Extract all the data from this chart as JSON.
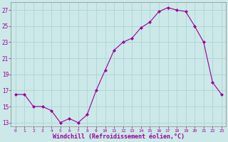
{
  "x": [
    0,
    1,
    2,
    3,
    4,
    5,
    6,
    7,
    8,
    9,
    10,
    11,
    12,
    13,
    14,
    15,
    16,
    17,
    18,
    19,
    20,
    21,
    22,
    23
  ],
  "y": [
    16.5,
    16.5,
    15.0,
    15.0,
    14.5,
    13.0,
    13.5,
    13.0,
    14.0,
    17.0,
    19.5,
    22.0,
    23.0,
    23.5,
    24.8,
    25.5,
    26.8,
    27.3,
    27.0,
    26.8,
    25.0,
    23.0,
    18.0,
    16.5
  ],
  "line_color": "#990099",
  "marker": "D",
  "marker_size": 2.0,
  "xlabel": "Windchill (Refroidissement éolien,°C)",
  "xlabel_fontsize": 6.0,
  "bg_color": "#cce8e8",
  "grid_color": "#b0d8d8",
  "tick_color": "#990099",
  "label_color": "#990099",
  "ylim": [
    12.5,
    28.0
  ],
  "xlim": [
    -0.5,
    23.5
  ],
  "yticks": [
    13,
    15,
    17,
    19,
    21,
    23,
    25,
    27
  ],
  "xticks": [
    0,
    1,
    2,
    3,
    4,
    5,
    6,
    7,
    8,
    9,
    10,
    11,
    12,
    13,
    14,
    15,
    16,
    17,
    18,
    19,
    20,
    21,
    22,
    23
  ]
}
